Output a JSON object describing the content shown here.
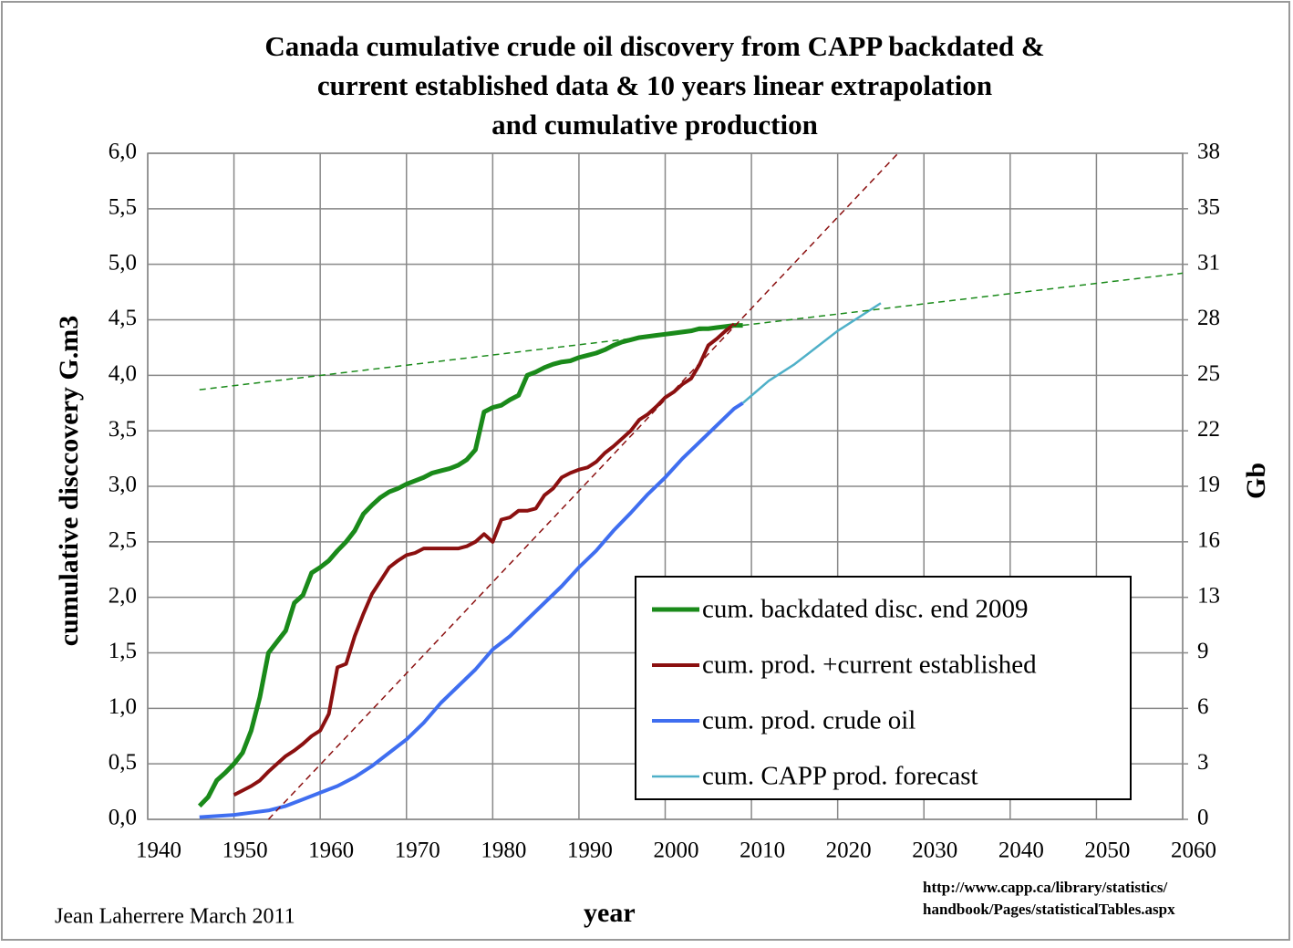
{
  "chart_data": {
    "type": "line",
    "title": [
      "Canada cumulative crude oil discovery from CAPP backdated &",
      "current established data & 10 years linear extrapolation",
      "and cumulative production"
    ],
    "xlabel": "year",
    "ylabel": "cumulative disccovery G.m3",
    "y2label": "Gb",
    "author": "Jean Laherrere March 2011",
    "source": [
      "http://www.capp.ca/library/statistics/",
      "handbook/Pages/statisticalTables.aspx"
    ],
    "xlim": [
      1940,
      2060
    ],
    "xticks": [
      1940,
      1950,
      1960,
      1970,
      1980,
      1990,
      2000,
      2010,
      2020,
      2030,
      2040,
      2050,
      2060
    ],
    "ylim": [
      0,
      6
    ],
    "yticks": [
      {
        "value": 0,
        "label": "0,0"
      },
      {
        "value": 0.5,
        "label": "0,5"
      },
      {
        "value": 1,
        "label": "1,0"
      },
      {
        "value": 1.5,
        "label": "1,5"
      },
      {
        "value": 2,
        "label": "2,0"
      },
      {
        "value": 2.5,
        "label": "2,5"
      },
      {
        "value": 3,
        "label": "3,0"
      },
      {
        "value": 3.5,
        "label": "3,5"
      },
      {
        "value": 4,
        "label": "4,0"
      },
      {
        "value": 4.5,
        "label": "4,5"
      },
      {
        "value": 5,
        "label": "5,0"
      },
      {
        "value": 5.5,
        "label": "5,5"
      },
      {
        "value": 6,
        "label": "6,0"
      }
    ],
    "y2lim": [
      0,
      37.74
    ],
    "y2ticks": [
      0,
      {
        "value": 3.145,
        "label": "3"
      },
      {
        "value": 6.29,
        "label": "6"
      },
      {
        "value": 9.435,
        "label": "9"
      },
      {
        "value": 12.58,
        "label": "13"
      },
      {
        "value": 15.725,
        "label": "16"
      },
      {
        "value": 18.87,
        "label": "19"
      },
      {
        "value": 22.015,
        "label": "22"
      },
      {
        "value": 25.16,
        "label": "25"
      },
      {
        "value": 28.305,
        "label": "28"
      },
      {
        "value": 31.45,
        "label": "31"
      },
      {
        "value": 34.595,
        "label": "35"
      },
      {
        "value": 37.74,
        "label": "38"
      }
    ],
    "grid": true,
    "legend": "lower right",
    "series": [
      {
        "name": "cum. backdated disc. end 2009",
        "color": "#1a8a1a",
        "width": 5,
        "x": [
          1946,
          1947,
          1948,
          1949,
          1950,
          1951,
          1952,
          1953,
          1954,
          1955,
          1956,
          1957,
          1958,
          1959,
          1960,
          1961,
          1962,
          1963,
          1964,
          1965,
          1966,
          1967,
          1968,
          1969,
          1970,
          1971,
          1972,
          1973,
          1974,
          1975,
          1976,
          1977,
          1978,
          1979,
          1980,
          1981,
          1982,
          1983,
          1984,
          1985,
          1986,
          1987,
          1988,
          1989,
          1990,
          1991,
          1992,
          1993,
          1994,
          1995,
          1996,
          1997,
          1998,
          1999,
          2000,
          2001,
          2002,
          2003,
          2004,
          2005,
          2006,
          2007,
          2008,
          2009
        ],
        "values": [
          0.12,
          0.2,
          0.35,
          0.42,
          0.5,
          0.6,
          0.8,
          1.1,
          1.5,
          1.6,
          1.7,
          1.95,
          2.02,
          2.22,
          2.27,
          2.33,
          2.42,
          2.5,
          2.6,
          2.75,
          2.83,
          2.9,
          2.95,
          2.98,
          3.02,
          3.05,
          3.08,
          3.12,
          3.14,
          3.16,
          3.19,
          3.24,
          3.33,
          3.67,
          3.71,
          3.73,
          3.78,
          3.82,
          4.0,
          4.03,
          4.07,
          4.1,
          4.12,
          4.13,
          4.16,
          4.18,
          4.2,
          4.23,
          4.27,
          4.3,
          4.32,
          4.34,
          4.35,
          4.36,
          4.37,
          4.38,
          4.39,
          4.4,
          4.42,
          4.42,
          4.43,
          4.44,
          4.45,
          4.45
        ]
      },
      {
        "name": "cum. prod. +current established",
        "color": "#8b1010",
        "width": 4,
        "x": [
          1950,
          1951,
          1952,
          1953,
          1954,
          1955,
          1956,
          1957,
          1958,
          1959,
          1960,
          1961,
          1962,
          1963,
          1964,
          1965,
          1966,
          1967,
          1968,
          1969,
          1970,
          1971,
          1972,
          1973,
          1974,
          1975,
          1976,
          1977,
          1978,
          1979,
          1980,
          1981,
          1982,
          1983,
          1984,
          1985,
          1986,
          1987,
          1988,
          1989,
          1990,
          1991,
          1992,
          1993,
          1994,
          1995,
          1996,
          1997,
          1998,
          1999,
          2000,
          2001,
          2002,
          2003,
          2004,
          2005,
          2006,
          2007,
          2008
        ],
        "values": [
          0.22,
          0.26,
          0.3,
          0.35,
          0.43,
          0.5,
          0.57,
          0.62,
          0.68,
          0.75,
          0.8,
          0.95,
          1.37,
          1.4,
          1.65,
          1.85,
          2.03,
          2.15,
          2.27,
          2.33,
          2.38,
          2.4,
          2.44,
          2.44,
          2.44,
          2.44,
          2.44,
          2.46,
          2.5,
          2.57,
          2.5,
          2.7,
          2.72,
          2.78,
          2.78,
          2.8,
          2.92,
          2.98,
          3.08,
          3.12,
          3.15,
          3.17,
          3.22,
          3.3,
          3.36,
          3.43,
          3.5,
          3.6,
          3.65,
          3.72,
          3.8,
          3.85,
          3.92,
          3.97,
          4.1,
          4.27,
          4.33,
          4.4,
          4.46
        ]
      },
      {
        "name": "cum. prod. crude oil",
        "color": "#3f6ef0",
        "width": 4,
        "x": [
          1946,
          1948,
          1950,
          1952,
          1954,
          1956,
          1958,
          1960,
          1962,
          1964,
          1966,
          1968,
          1970,
          1972,
          1974,
          1976,
          1978,
          1980,
          1982,
          1984,
          1986,
          1988,
          1990,
          1992,
          1994,
          1996,
          1998,
          2000,
          2002,
          2004,
          2006,
          2008,
          2009
        ],
        "values": [
          0.02,
          0.03,
          0.04,
          0.06,
          0.08,
          0.12,
          0.18,
          0.24,
          0.3,
          0.38,
          0.48,
          0.6,
          0.72,
          0.87,
          1.05,
          1.2,
          1.35,
          1.53,
          1.65,
          1.8,
          1.95,
          2.1,
          2.27,
          2.42,
          2.6,
          2.76,
          2.93,
          3.08,
          3.25,
          3.4,
          3.55,
          3.7,
          3.75
        ]
      },
      {
        "name": "cum. CAPP prod. forecast",
        "color": "#4fb0c8",
        "width": 2.5,
        "x": [
          2009,
          2012,
          2015,
          2020,
          2025
        ],
        "values": [
          3.75,
          3.95,
          4.1,
          4.4,
          4.65
        ]
      },
      {
        "color": "#1a8a1a",
        "width": 1.5,
        "dashed": true,
        "x": [
          1946,
          2060
        ],
        "values": [
          3.87,
          4.92
        ]
      },
      {
        "color": "#8b1010",
        "width": 1.5,
        "dashed": true,
        "x": [
          1954,
          2027
        ],
        "values": [
          0,
          6
        ]
      }
    ]
  }
}
